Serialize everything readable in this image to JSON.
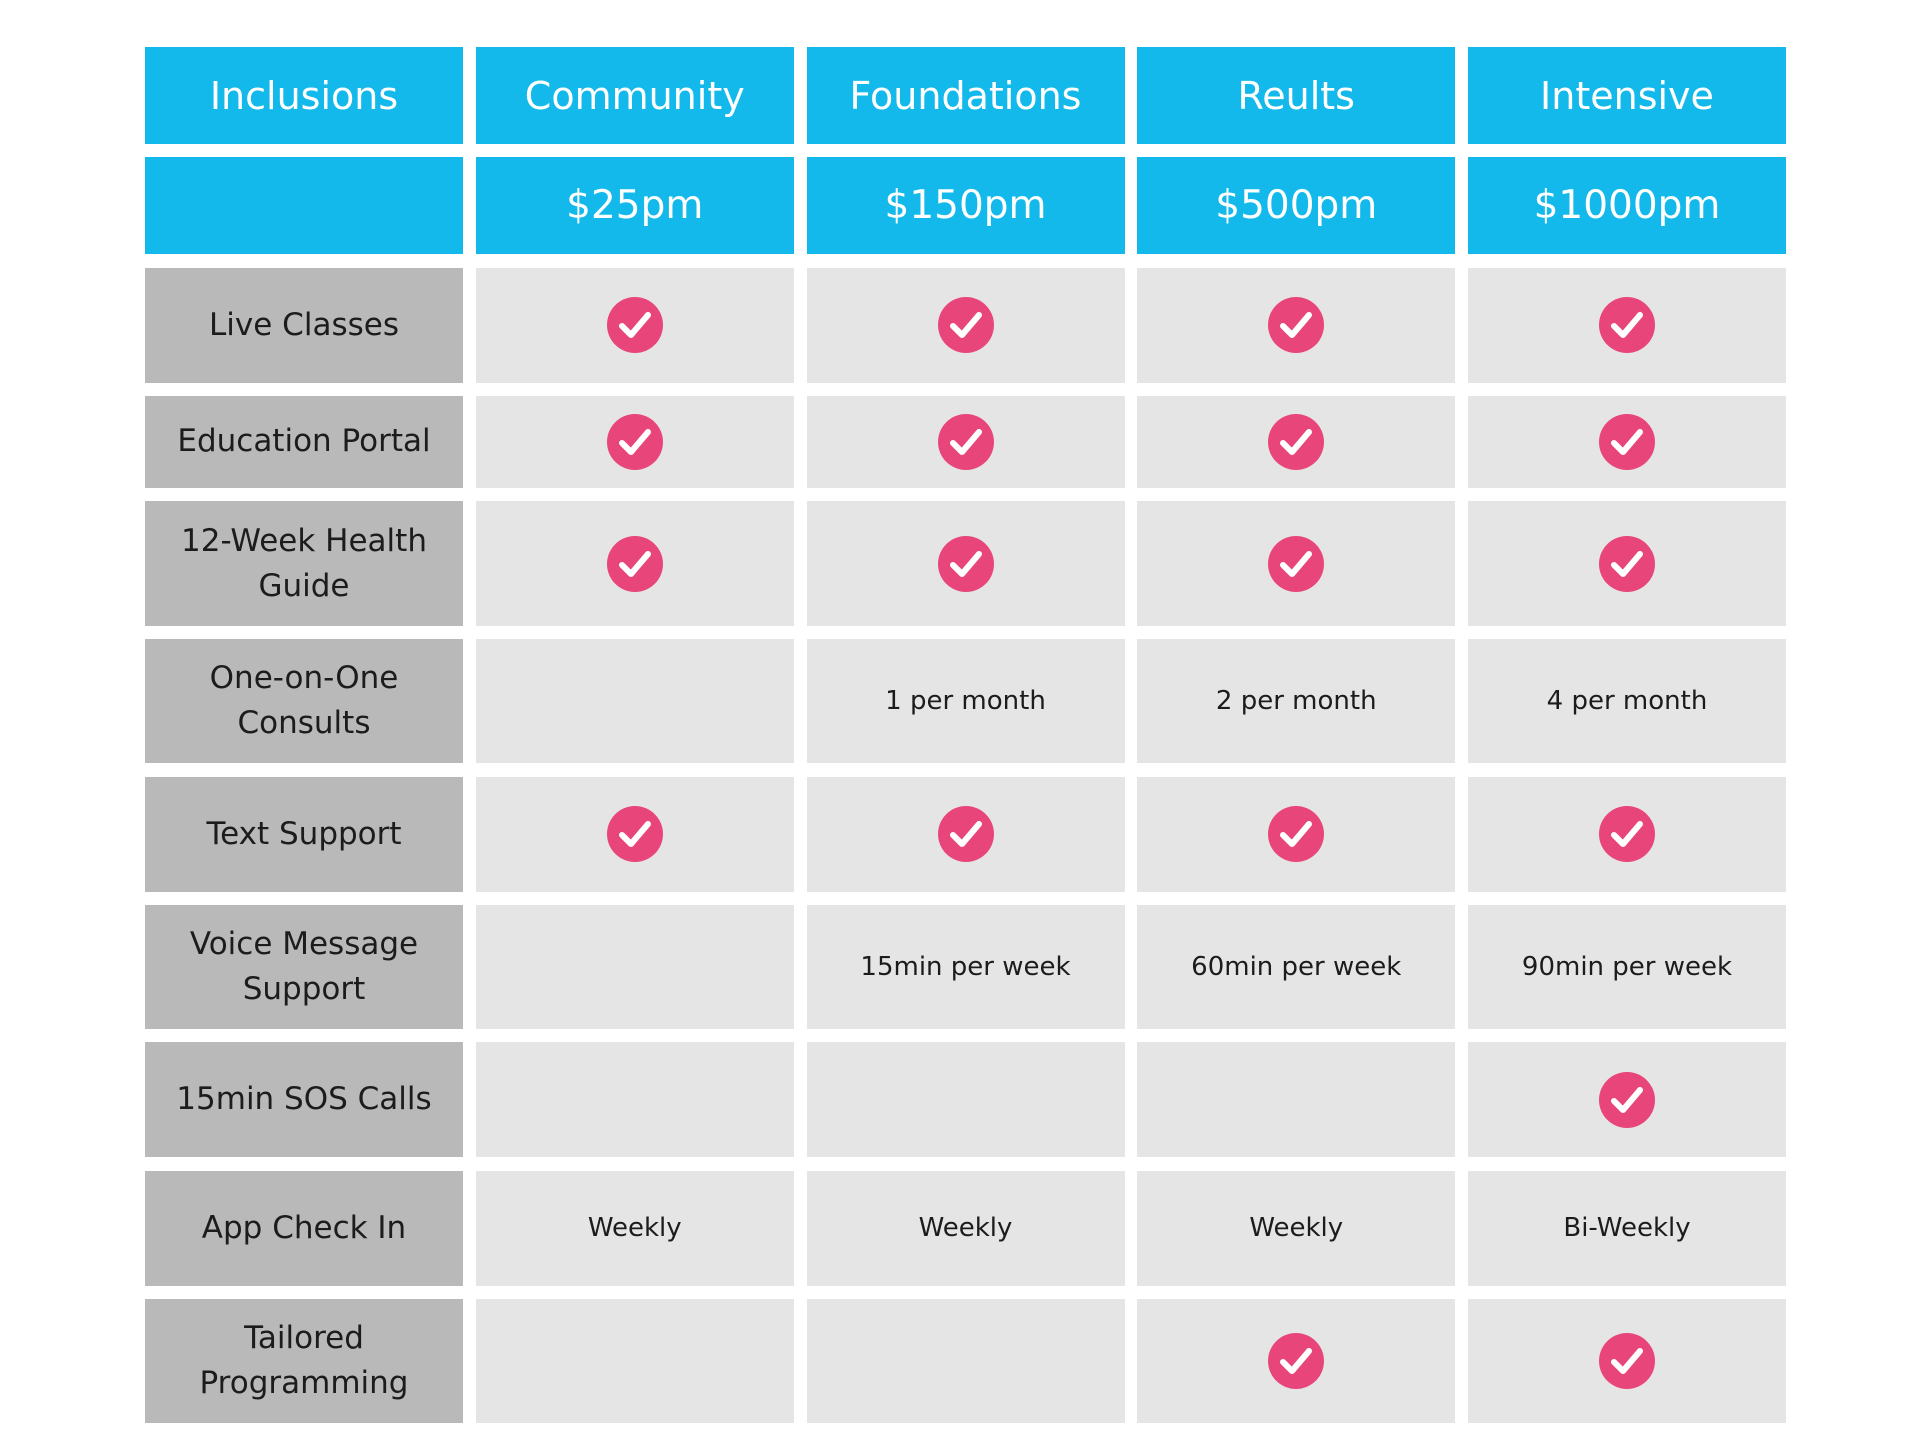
{
  "table": {
    "header": [
      "Inclusions",
      "Community",
      "Foundations",
      "Reults",
      "Intensive"
    ],
    "prices": [
      "",
      "$25pm",
      "$150pm",
      "$500pm",
      "$1000pm"
    ],
    "rows": [
      {
        "label": "Live Classes",
        "cells": [
          {
            "kind": "check"
          },
          {
            "kind": "check"
          },
          {
            "kind": "check"
          },
          {
            "kind": "check"
          }
        ]
      },
      {
        "label": "Education Portal",
        "cells": [
          {
            "kind": "check"
          },
          {
            "kind": "check"
          },
          {
            "kind": "check"
          },
          {
            "kind": "check"
          }
        ]
      },
      {
        "label": "12-Week Health Guide",
        "cells": [
          {
            "kind": "check"
          },
          {
            "kind": "check"
          },
          {
            "kind": "check"
          },
          {
            "kind": "check"
          }
        ]
      },
      {
        "label": "One-on-One Consults",
        "cells": [
          {
            "kind": "empty"
          },
          {
            "kind": "text",
            "text": "1 per month"
          },
          {
            "kind": "text",
            "text": "2 per month"
          },
          {
            "kind": "text",
            "text": "4 per month"
          }
        ]
      },
      {
        "label": "Text Support",
        "cells": [
          {
            "kind": "check"
          },
          {
            "kind": "check"
          },
          {
            "kind": "check"
          },
          {
            "kind": "check"
          }
        ]
      },
      {
        "label": "Voice Message Support",
        "cells": [
          {
            "kind": "empty"
          },
          {
            "kind": "text",
            "text": "15min per week"
          },
          {
            "kind": "text",
            "text": "60min per week"
          },
          {
            "kind": "text",
            "text": "90min per week"
          }
        ]
      },
      {
        "label": "15min SOS Calls",
        "cells": [
          {
            "kind": "empty"
          },
          {
            "kind": "empty"
          },
          {
            "kind": "empty"
          },
          {
            "kind": "check"
          }
        ]
      },
      {
        "label": "App Check In",
        "cells": [
          {
            "kind": "text",
            "text": "Weekly"
          },
          {
            "kind": "text",
            "text": "Weekly"
          },
          {
            "kind": "text",
            "text": "Weekly"
          },
          {
            "kind": "text",
            "text": "Bi-Weekly"
          }
        ]
      },
      {
        "label": "Tailored Programming",
        "cells": [
          {
            "kind": "empty"
          },
          {
            "kind": "empty"
          },
          {
            "kind": "check"
          },
          {
            "kind": "check"
          }
        ]
      }
    ]
  },
  "icons": {
    "included": "check-circle-icon"
  },
  "colors": {
    "header_bg": "#12b9ea",
    "label_bg": "#b9b9b9",
    "cell_bg": "#e5e5e5",
    "check_color": "#e8467a",
    "text": "#1c1c1c"
  }
}
